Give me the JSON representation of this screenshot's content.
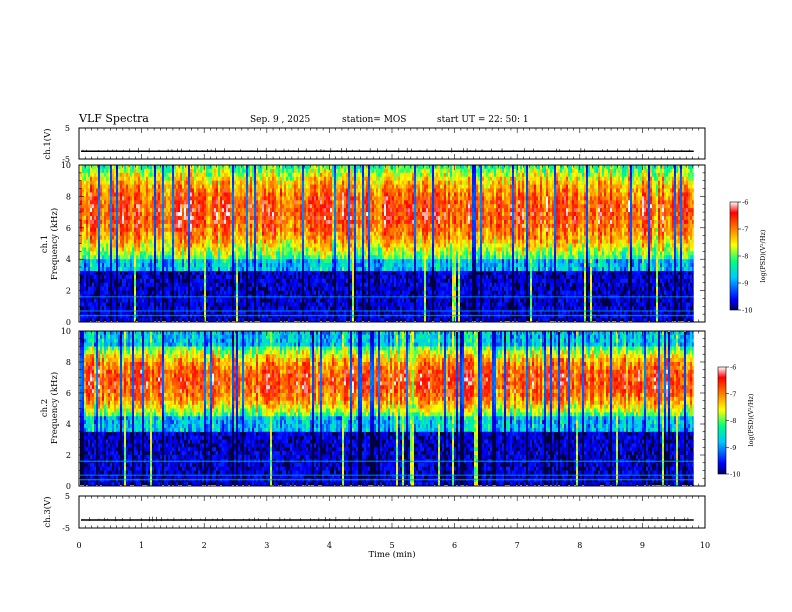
{
  "header": {
    "title": "VLF Spectra",
    "date": "Sep. 9  , 2025",
    "station": "station= MOS",
    "start": "start  UT  =   22: 50: 1"
  },
  "chart_data": {
    "type": "heatmap",
    "x_axis": {
      "label": "Time  (min)",
      "range": [
        0,
        10
      ],
      "ticks": [
        "0",
        "1",
        "2",
        "3",
        "4",
        "5",
        "6",
        "7",
        "8",
        "9",
        "10"
      ]
    },
    "panels": [
      {
        "name": "ch.1(V)",
        "type": "line",
        "ylabel": "ch.1(V)",
        "ylim": [
          -5,
          5
        ],
        "yticks": [
          "5",
          "-5"
        ],
        "baseline": -2.5
      },
      {
        "name": "ch.1 spectrogram",
        "type": "heatmap",
        "ylabel_top": "ch.1",
        "ylabel": "Frequency  (kHz)",
        "ylim": [
          0,
          10
        ],
        "yticks": [
          "0",
          "2",
          "4",
          "6",
          "8",
          "10"
        ],
        "noise_floor_top_khz": 3.2,
        "emission_band_khz": [
          4,
          10
        ],
        "data_end_min": 9.82
      },
      {
        "name": "ch.2 spectrogram",
        "type": "heatmap",
        "ylabel_top": "ch.2",
        "ylabel": "Frequency  (kHz)",
        "ylim": [
          0,
          10
        ],
        "yticks": [
          "0",
          "2",
          "4",
          "6",
          "8",
          "10"
        ],
        "noise_floor_top_khz": 3.5,
        "emission_band_khz": [
          4.5,
          9
        ],
        "data_end_min": 9.82
      },
      {
        "name": "ch.3(V)",
        "type": "line",
        "ylabel": "ch.3(V)",
        "ylim": [
          -5,
          5
        ],
        "yticks": [
          "5",
          "-5"
        ],
        "baseline": -2.5
      }
    ],
    "colorbar": {
      "label": "log(PSD)(V²/Hz)",
      "range": [
        -10,
        -6
      ],
      "ticks": [
        "-6",
        "-7",
        "-8",
        "-9",
        "-10"
      ],
      "colors": [
        "#000060",
        "#0000ff",
        "#00c8ff",
        "#00ff80",
        "#ffff00",
        "#ff8000",
        "#ff0000",
        "#ffffff"
      ]
    }
  }
}
